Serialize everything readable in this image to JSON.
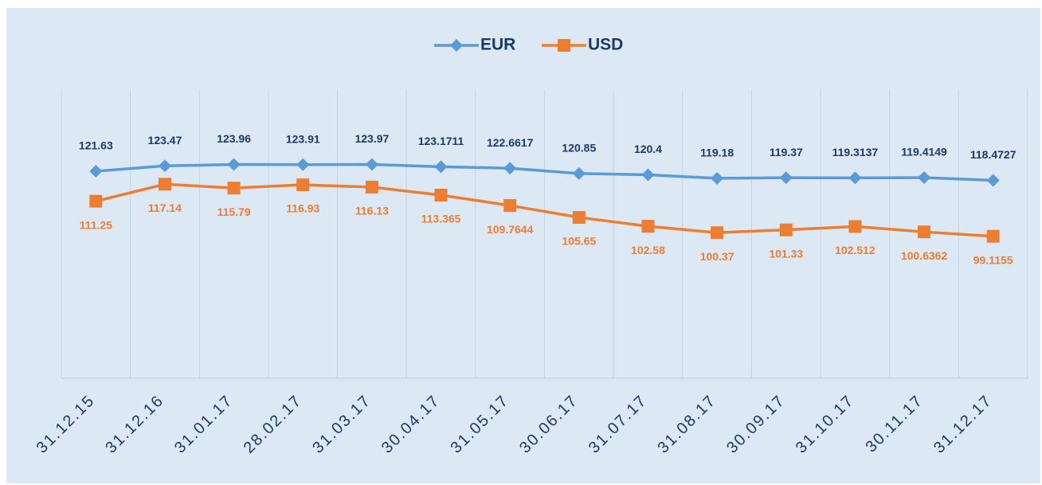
{
  "chart_data": {
    "type": "line",
    "categories": [
      "31.12.15",
      "31.12.16",
      "31.01.17",
      "28.02.17",
      "31.03.17",
      "30.04.17",
      "31.05.17",
      "30.06.17",
      "31.07.17",
      "31.08.17",
      "30.09.17",
      "31.10.17",
      "30.11.17",
      "31.12.17"
    ],
    "series": [
      {
        "name": "EUR",
        "color": "#5b9bd5",
        "label_color": "#1f3864",
        "marker": "diamond",
        "values": [
          121.63,
          123.47,
          123.96,
          123.91,
          123.97,
          123.1711,
          122.6617,
          120.85,
          120.4,
          119.18,
          119.37,
          119.3137,
          119.4149,
          118.4727
        ]
      },
      {
        "name": "USD",
        "color": "#ed7d31",
        "label_color": "#ed7d31",
        "marker": "square",
        "values": [
          111.25,
          117.14,
          115.79,
          116.93,
          116.13,
          113.365,
          109.7644,
          105.65,
          102.58,
          100.37,
          101.33,
          102.512,
          100.6362,
          99.1155
        ]
      }
    ],
    "ylim": [
      50,
      150
    ],
    "legend": "top"
  }
}
